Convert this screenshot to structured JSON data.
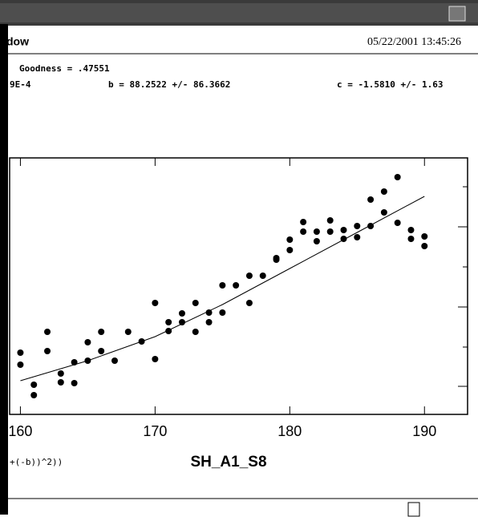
{
  "window": {
    "title": "dow",
    "timestamp": "05/22/2001 13:45:26"
  },
  "fit": {
    "goodness": "Goodness  =  .47551",
    "a": "9E-4",
    "b": "b = 88.2522 +/- 86.3662",
    "c": "c = -1.5810 +/- 1.63",
    "formula": "+(-b))^2))"
  },
  "chart_data": {
    "type": "scatter",
    "xlabel": "SH_A1_S8",
    "color": "#000000",
    "x": [
      160,
      160,
      161,
      161,
      162,
      162,
      163,
      163,
      164,
      164,
      165,
      165,
      166,
      166,
      167,
      168,
      169,
      170,
      170,
      171,
      171,
      172,
      172,
      173,
      173,
      174,
      174,
      175,
      175,
      176,
      177,
      177,
      178,
      179,
      179,
      180,
      180,
      181,
      181,
      182,
      182,
      183,
      183,
      184,
      184,
      185,
      185,
      186,
      186,
      187,
      187,
      188,
      188,
      189,
      189,
      190,
      190
    ],
    "values": [
      77,
      62,
      37,
      24,
      103,
      79,
      51,
      40,
      65,
      39,
      90,
      67,
      103,
      79,
      67,
      103,
      91,
      139,
      69,
      115,
      104,
      126,
      115,
      139,
      103,
      127,
      115,
      161,
      127,
      161,
      173,
      139,
      173,
      195,
      193,
      218,
      205,
      240,
      228,
      228,
      216,
      242,
      228,
      230,
      219,
      235,
      221,
      268,
      235,
      278,
      252,
      296,
      239,
      230,
      219,
      222,
      210
    ],
    "fit": {
      "x": [
        160,
        165,
        170,
        175,
        180,
        185,
        190
      ],
      "values": [
        42,
        67,
        97,
        137,
        182,
        227,
        272
      ]
    },
    "xlim": [
      159.2,
      193.2
    ],
    "ylim": [
      0,
      320
    ],
    "xticks": [
      160,
      170,
      180,
      190
    ]
  }
}
